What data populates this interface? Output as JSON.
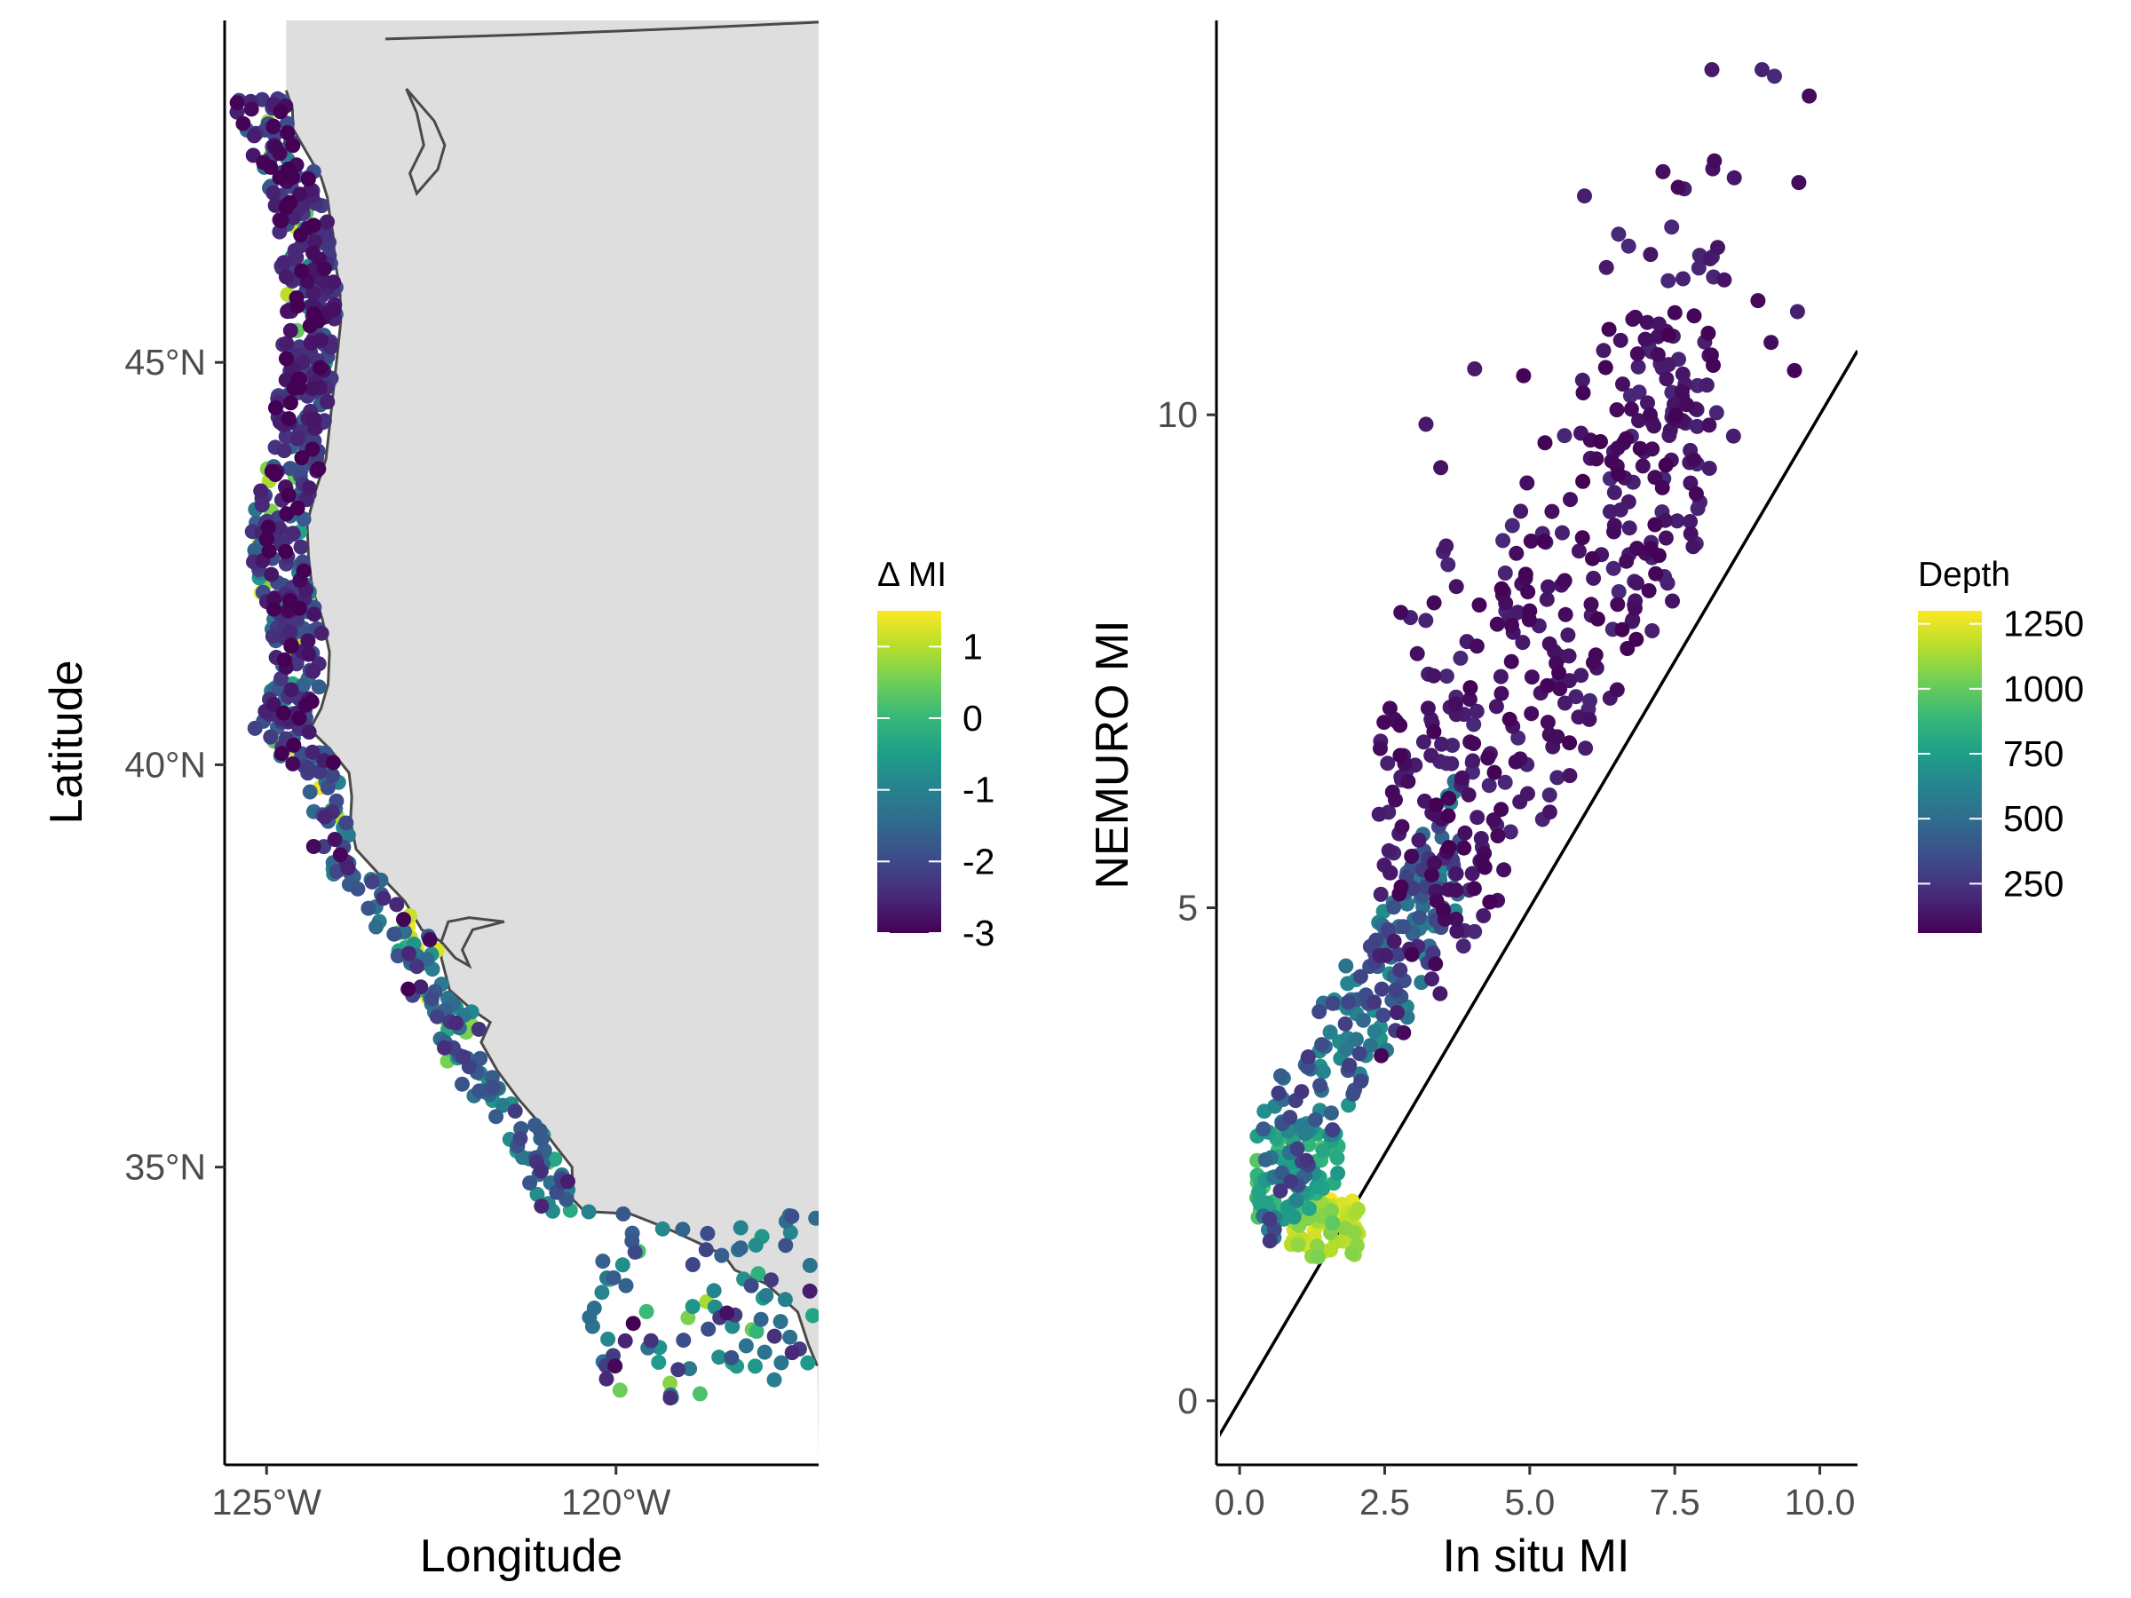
{
  "colors": {
    "land": "#dedede",
    "coast": "#4a4a4a",
    "axis": "#000000",
    "tick_text": "#4d4d4d",
    "viridis": [
      "#440154",
      "#482878",
      "#3e4989",
      "#31688e",
      "#26828e",
      "#1f9e89",
      "#35b779",
      "#6ece58",
      "#b5de2b",
      "#fde725"
    ]
  },
  "chart_data": [
    {
      "type": "scatter",
      "subtype": "map",
      "xlabel": "Longitude",
      "ylabel": "Latitude",
      "xlim": [
        -125.6,
        -117.1
      ],
      "ylim": [
        31.3,
        49.25
      ],
      "x_ticks": [
        -125,
        -120
      ],
      "x_tick_labels": [
        "125°W",
        "120°W"
      ],
      "y_ticks": [
        35,
        40,
        45
      ],
      "y_tick_labels": [
        "35°N",
        "40°N",
        "45°N"
      ],
      "grid": false,
      "legend": {
        "title": "Δ MI",
        "placement": "right",
        "limits": [
          -3,
          1.5
        ],
        "ticks": [
          1,
          0,
          -1,
          -2,
          -3
        ],
        "tick_labels": [
          "1",
          "0",
          "-1",
          "-2",
          "-3"
        ]
      },
      "points_note": "approx. 800 survey stations along the US West Coast, colored by delta MI (range about -3 to 1.5)"
    },
    {
      "type": "scatter",
      "xlabel": "In situ MI",
      "ylabel": "NEMURO MI",
      "xlim": [
        -0.4,
        10.65
      ],
      "ylim": [
        -0.65,
        14
      ],
      "x_ticks": [
        0,
        2.5,
        5,
        7.5,
        10
      ],
      "x_tick_labels": [
        "0.0",
        "2.5",
        "5.0",
        "7.5",
        "10.0"
      ],
      "y_ticks": [
        0,
        5,
        10
      ],
      "y_tick_labels": [
        "0",
        "5",
        "10"
      ],
      "grid": false,
      "reference_line": {
        "type": "y=x",
        "x": [
          -0.4,
          10.65
        ],
        "y": [
          -0.4,
          10.65
        ]
      },
      "legend": {
        "title": "Depth",
        "placement": "right",
        "limits": [
          60,
          1300
        ],
        "ticks": [
          1250,
          1000,
          750,
          500,
          250
        ],
        "tick_labels": [
          "1250",
          "1000",
          "750",
          "500",
          "250"
        ]
      },
      "points_note": "approx. 800 stations; shallow (<200 m) points plot MI 3-13, deep (>1000 m) points cluster near x 1-2, y 1.5-2"
    }
  ]
}
